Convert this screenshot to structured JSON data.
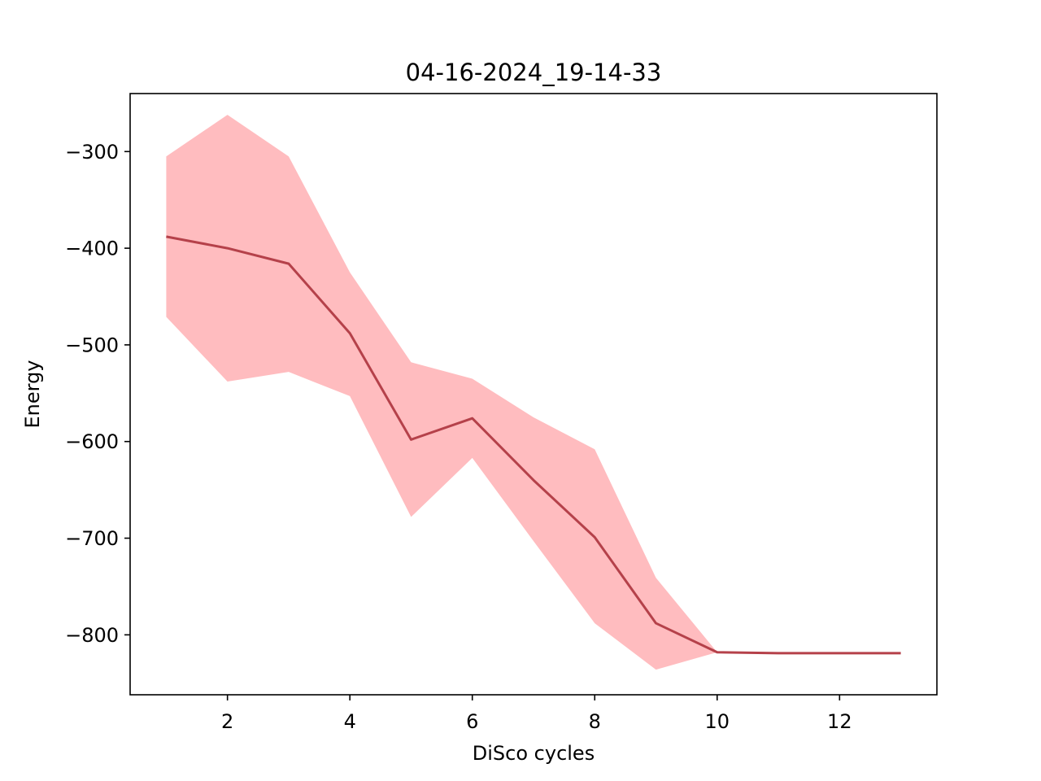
{
  "chart_data": {
    "type": "line",
    "title": "04-16-2024_19-14-33",
    "xlabel": "DiSco cycles",
    "ylabel": "Energy",
    "xlim": [
      0.41,
      13.59
    ],
    "ylim": [
      -862,
      -240
    ],
    "xticks": [
      2,
      4,
      6,
      8,
      10,
      12
    ],
    "xtick_labels": [
      "2",
      "4",
      "6",
      "8",
      "10",
      "12"
    ],
    "yticks": [
      -300,
      -400,
      -500,
      -600,
      -700,
      -800
    ],
    "ytick_labels": [
      "−300",
      "−400",
      "−500",
      "−600",
      "−700",
      "−800"
    ],
    "grid": false,
    "series": [
      {
        "x": [
          1,
          2,
          3,
          4,
          5,
          6,
          7,
          8,
          9,
          10,
          11,
          12,
          13
        ],
        "values": [
          -388,
          -400,
          -416,
          -488,
          -598,
          -576,
          -640,
          -699,
          -788,
          -818,
          -819,
          -819,
          -819
        ],
        "upper": [
          -305,
          -262,
          -305,
          -425,
          -518,
          -535,
          -575,
          -608,
          -741,
          -818,
          -819,
          -819,
          -819
        ],
        "lower": [
          -471,
          -538,
          -528,
          -553,
          -678,
          -617,
          -703,
          -788,
          -836,
          -818,
          -819,
          -819,
          -819
        ],
        "line_color": "#b5414a",
        "band_color": "#ffbcbf"
      }
    ]
  }
}
